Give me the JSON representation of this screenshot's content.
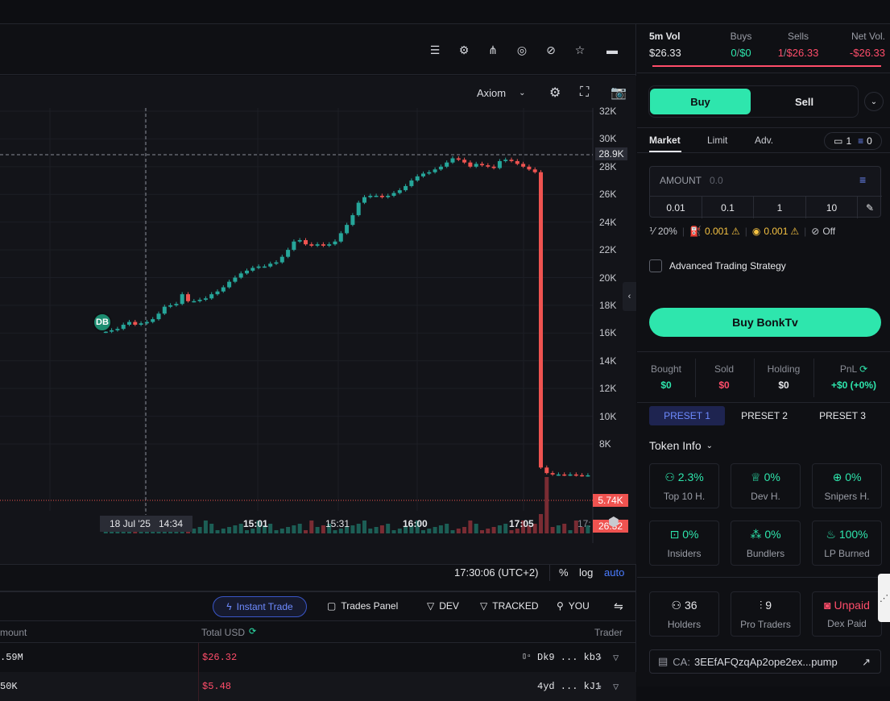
{
  "toolbar_icons": [
    "list-icon",
    "gear-icon",
    "share-icon",
    "eye-off-icon",
    "hide-icon",
    "star-icon",
    "save-icon"
  ],
  "chart": {
    "source_label": "Axiom",
    "price_ticks": [
      "32K",
      "30K",
      "28K",
      "26K",
      "24K",
      "22K",
      "20K",
      "18K",
      "16K",
      "14K",
      "12K",
      "10K",
      "8K"
    ],
    "crosshair_price": "28.9K",
    "last_price_label": "5.74K",
    "volume_label": "26.32",
    "crosshair_time": "18 Jul '25   14:34",
    "time_ticks": [
      "15:01",
      "15:31",
      "16:00",
      "17:05",
      "17:"
    ],
    "marker": "DB",
    "clock": "17:30:06 (UTC+2)",
    "percent_label": "%",
    "log_label": "log",
    "auto_label": "auto",
    "colors": {
      "up": "#26a69a",
      "down": "#ef5350"
    }
  },
  "trades": {
    "instant_trade": "Instant Trade",
    "trades_panel": "Trades Panel",
    "dev": "DEV",
    "tracked": "TRACKED",
    "you": "YOU",
    "col_amount": "mount",
    "col_total": "Total USD",
    "col_trader": "Trader",
    "rows": [
      {
        "amount": ".59M",
        "total": "$26.32",
        "trader": "Dk9 ... kb3"
      },
      {
        "amount": "50K",
        "total": "$5.48",
        "trader": "4yd ... kJ1"
      }
    ]
  },
  "stats": {
    "vol_label": "5m Vol",
    "vol_value": "$26.33",
    "buys_label": "Buys",
    "buys_count": "0",
    "buys_sep": "/",
    "buys_value": "$0",
    "sells_label": "Sells",
    "sells_count": "1",
    "sells_sep": "/",
    "sells_value": "$26.33",
    "net_label": "Net Vol.",
    "net_value": "-$26.33"
  },
  "trade_form": {
    "buy_tab": "Buy",
    "sell_tab": "Sell",
    "order_tabs": [
      "Market",
      "Limit",
      "Adv."
    ],
    "wallet_count": "1",
    "list_count": "0",
    "amount_label": "AMOUNT",
    "amount_placeholder": "0.0",
    "quick_amounts": [
      "0.01",
      "0.1",
      "1",
      "10"
    ],
    "slippage": "20%",
    "priority": "0.001",
    "bribe": "0.001",
    "mev": "Off",
    "advanced_label": "Advanced Trading Strategy",
    "buy_button": "Buy BonkTv"
  },
  "pnl": {
    "bought_label": "Bought",
    "bought": "$0",
    "sold_label": "Sold",
    "sold": "$0",
    "holding_label": "Holding",
    "holding": "$0",
    "pnl_label": "PnL",
    "pnl": "+$0 (+0%)"
  },
  "presets": [
    "PRESET 1",
    "PRESET 2",
    "PRESET 3"
  ],
  "token_info": {
    "title": "Token Info",
    "cards": [
      {
        "value": "2.3%",
        "label": "Top 10 H.",
        "icon": "user-icon"
      },
      {
        "value": "0%",
        "label": "Dev H.",
        "icon": "chef-icon"
      },
      {
        "value": "0%",
        "label": "Snipers H.",
        "icon": "crosshair-icon"
      },
      {
        "value": "0%",
        "label": "Insiders",
        "icon": "ghost-icon"
      },
      {
        "value": "0%",
        "label": "Bundlers",
        "icon": "bundle-icon"
      },
      {
        "value": "100%",
        "label": "LP Burned",
        "icon": "flame-icon"
      },
      {
        "value": "36",
        "label": "Holders",
        "icon": "users-icon"
      },
      {
        "value": "9",
        "label": "Pro Traders",
        "icon": "candles-icon"
      },
      {
        "value": "Unpaid",
        "label": "Dex Paid",
        "icon": "badge-icon"
      }
    ],
    "ca_label": "CA:",
    "ca_value": "3EEfAFQzqAp2ope2ex...pump"
  }
}
